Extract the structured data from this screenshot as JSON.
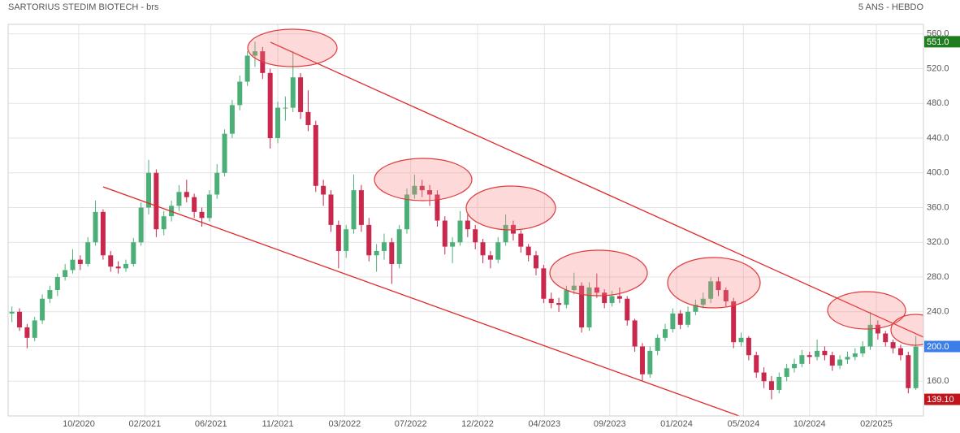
{
  "chart_data": {
    "type": "candlestick",
    "title": "SARTORIUS STEDIM BIOTECH - brs",
    "subtitle": "5 ANS - HEBDO",
    "up_color": "#4caf78",
    "down_color": "#c8284b",
    "grid": true,
    "ylim": [
      120,
      571
    ],
    "yticks": [
      {
        "value": 160,
        "label": "160.0"
      },
      {
        "value": 200,
        "label": "200.0"
      },
      {
        "value": 240,
        "label": "240.0"
      },
      {
        "value": 280,
        "label": "280.0"
      },
      {
        "value": 320,
        "label": "320.0"
      },
      {
        "value": 360,
        "label": "360.0"
      },
      {
        "value": 400,
        "label": "400.0"
      },
      {
        "value": 440,
        "label": "440.0"
      },
      {
        "value": 480,
        "label": "480.0"
      },
      {
        "value": 520,
        "label": "520.0"
      },
      {
        "value": 560,
        "label": "560.0"
      }
    ],
    "xlim": [
      -0.5,
      120
    ],
    "xticks": [
      {
        "value": 8.8,
        "label": "10/2020"
      },
      {
        "value": 17.5,
        "label": "02/2021"
      },
      {
        "value": 26.2,
        "label": "06/2021"
      },
      {
        "value": 35.0,
        "label": "11/2021"
      },
      {
        "value": 43.8,
        "label": "03/2022"
      },
      {
        "value": 52.5,
        "label": "07/2022"
      },
      {
        "value": 61.3,
        "label": "12/2022"
      },
      {
        "value": 70.1,
        "label": "04/2023"
      },
      {
        "value": 78.7,
        "label": "09/2023"
      },
      {
        "value": 87.5,
        "label": "01/2024"
      },
      {
        "value": 96.3,
        "label": "05/2024"
      },
      {
        "value": 105.0,
        "label": "10/2024"
      },
      {
        "value": 113.8,
        "label": "02/2025"
      }
    ],
    "price_tags": [
      {
        "value": 551,
        "label": "551.0",
        "color": "#1e7d1e"
      },
      {
        "value": 200,
        "label": "200.0",
        "color": "#3b7de9"
      },
      {
        "value": 139.1,
        "label": "139.10",
        "color": "#c0151b"
      }
    ],
    "open": [
      238,
      240,
      222,
      210,
      230,
      255,
      265,
      280,
      288,
      300,
      295,
      320,
      355,
      305,
      292,
      290,
      295,
      320,
      360,
      400,
      335,
      350,
      362,
      378,
      372,
      355,
      348,
      375,
      400,
      445,
      478,
      505,
      535,
      540,
      515,
      440,
      475,
      475,
      510,
      470,
      455,
      385,
      375,
      340,
      310,
      335,
      380,
      340,
      305,
      310,
      320,
      295,
      335,
      375,
      385,
      380,
      375,
      345,
      315,
      320,
      345,
      335,
      320,
      305,
      300,
      320,
      340,
      330,
      315,
      305,
      290,
      255,
      250,
      248,
      265,
      270,
      222,
      268,
      262,
      250,
      258,
      255,
      230,
      200,
      168,
      195,
      210,
      220,
      238,
      225,
      240,
      248,
      255,
      275,
      265,
      252,
      205,
      210,
      190,
      170,
      160,
      150,
      165,
      175,
      180,
      190,
      188,
      195,
      190,
      178,
      185,
      188,
      192,
      200,
      225,
      215,
      205,
      198,
      190,
      152
    ],
    "high": [
      246,
      244,
      226,
      234,
      260,
      270,
      284,
      295,
      312,
      305,
      326,
      368,
      358,
      310,
      298,
      300,
      325,
      366,
      415,
      404,
      356,
      368,
      386,
      392,
      376,
      360,
      380,
      410,
      450,
      484,
      512,
      540,
      551,
      545,
      520,
      482,
      488,
      540,
      515,
      495,
      460,
      392,
      380,
      345,
      340,
      398,
      386,
      348,
      318,
      330,
      325,
      340,
      382,
      398,
      392,
      386,
      380,
      350,
      326,
      356,
      352,
      340,
      324,
      310,
      326,
      352,
      345,
      334,
      318,
      310,
      294,
      262,
      256,
      270,
      285,
      274,
      274,
      284,
      266,
      264,
      268,
      258,
      232,
      204,
      200,
      214,
      226,
      244,
      242,
      246,
      254,
      262,
      280,
      280,
      268,
      256,
      216,
      212,
      194,
      176,
      166,
      170,
      180,
      186,
      196,
      194,
      208,
      200,
      194,
      190,
      194,
      198,
      206,
      240,
      230,
      218,
      208,
      202,
      194,
      212
    ],
    "low": [
      228,
      218,
      198,
      206,
      226,
      250,
      258,
      276,
      284,
      288,
      292,
      316,
      300,
      286,
      284,
      286,
      292,
      316,
      352,
      326,
      328,
      344,
      356,
      366,
      348,
      338,
      344,
      370,
      396,
      440,
      472,
      500,
      522,
      508,
      428,
      434,
      460,
      470,
      462,
      448,
      378,
      362,
      332,
      290,
      302,
      330,
      332,
      298,
      286,
      300,
      272,
      290,
      330,
      370,
      372,
      362,
      338,
      306,
      296,
      316,
      326,
      312,
      296,
      290,
      296,
      316,
      322,
      308,
      298,
      282,
      250,
      244,
      240,
      244,
      260,
      216,
      218,
      256,
      244,
      246,
      250,
      224,
      194,
      160,
      164,
      190,
      206,
      216,
      220,
      222,
      236,
      244,
      250,
      258,
      246,
      198,
      200,
      184,
      164,
      152,
      139.1,
      146,
      160,
      170,
      176,
      180,
      184,
      184,
      172,
      174,
      180,
      184,
      188,
      196,
      208,
      200,
      192,
      184,
      146,
      150
    ],
    "close": [
      240,
      222,
      210,
      230,
      255,
      265,
      280,
      288,
      300,
      295,
      320,
      355,
      305,
      292,
      290,
      295,
      320,
      360,
      400,
      335,
      350,
      362,
      378,
      372,
      355,
      348,
      375,
      400,
      445,
      478,
      505,
      535,
      540,
      515,
      440,
      475,
      475,
      510,
      470,
      455,
      385,
      375,
      340,
      310,
      335,
      380,
      340,
      305,
      310,
      320,
      295,
      335,
      375,
      385,
      380,
      375,
      345,
      315,
      320,
      345,
      335,
      320,
      305,
      300,
      320,
      340,
      330,
      315,
      305,
      290,
      255,
      250,
      248,
      265,
      270,
      222,
      268,
      262,
      250,
      258,
      255,
      230,
      200,
      168,
      195,
      210,
      220,
      238,
      225,
      240,
      248,
      255,
      275,
      265,
      252,
      205,
      210,
      190,
      170,
      160,
      150,
      165,
      175,
      180,
      190,
      188,
      195,
      190,
      178,
      185,
      188,
      192,
      200,
      225,
      215,
      205,
      198,
      190,
      152,
      200
    ]
  }
}
